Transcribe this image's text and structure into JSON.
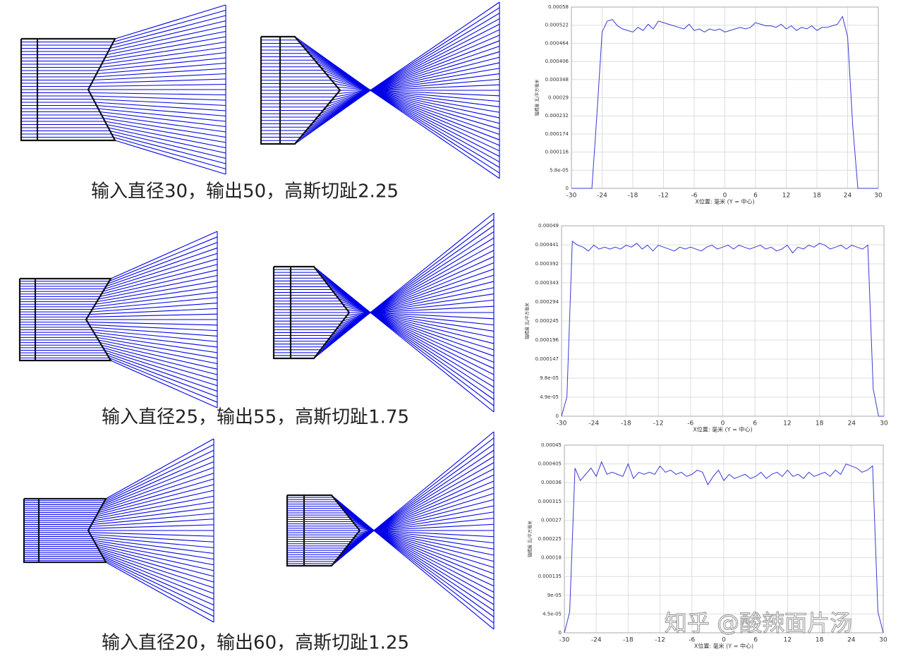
{
  "chart_data": [
    {
      "type": "line",
      "xlabel": "X位置: 毫米 (Y = 中心)",
      "ylabel": "辐照度 瓦/平方毫米",
      "color": "#3a3ad8",
      "grid": true,
      "x": [
        -30,
        -29,
        -28,
        -27,
        -26,
        -25,
        -24,
        -23,
        -22,
        -21,
        -20,
        -19,
        -18,
        -17,
        -16,
        -15,
        -14,
        -13,
        -12,
        -11,
        -10,
        -9,
        -8,
        -7,
        -6,
        -5,
        -4,
        -3,
        -2,
        -1,
        0,
        1,
        2,
        3,
        4,
        5,
        6,
        7,
        8,
        9,
        10,
        11,
        12,
        13,
        14,
        15,
        16,
        17,
        18,
        19,
        20,
        21,
        22,
        23,
        24,
        25,
        26,
        27,
        28,
        29,
        30
      ],
      "values": [
        0,
        0,
        0,
        0,
        0,
        0.00024,
        0.0005,
        0.000535,
        0.00054,
        0.00052,
        0.00051,
        0.000505,
        0.0005,
        0.000515,
        0.000505,
        0.000525,
        0.00051,
        0.000535,
        0.00053,
        0.000525,
        0.00052,
        0.000515,
        0.00051,
        0.000525,
        0.000505,
        0.00051,
        0.0005,
        0.00051,
        0.000505,
        0.00051,
        0.0005,
        0.000505,
        0.00051,
        0.000515,
        0.00051,
        0.000515,
        0.00053,
        0.000525,
        0.00052,
        0.00052,
        0.000515,
        0.000525,
        0.00051,
        0.00052,
        0.000505,
        0.000515,
        0.00051,
        0.00052,
        0.000505,
        0.000515,
        0.000515,
        0.00052,
        0.000525,
        0.00055,
        0.000485,
        0.0002,
        0,
        0,
        0,
        0,
        0
      ],
      "xlim": [
        -30,
        30
      ],
      "xticks": [
        -30,
        -24,
        -18,
        -12,
        -6,
        0,
        6,
        12,
        18,
        24,
        30
      ],
      "ylim": [
        0,
        0.00058
      ],
      "yticks": [
        0,
        {
          "value": 5.8e-05,
          "label": "5.8e-05"
        },
        0.000116,
        0.000174,
        0.000232,
        0.00029,
        0.000348,
        0.000406,
        0.000464,
        0.000522,
        0.00058
      ]
    },
    {
      "type": "line",
      "xlabel": "X位置: 毫米 (Y = 中心)",
      "ylabel": "辐照度 瓦/平方毫米",
      "color": "#3a3ad8",
      "grid": true,
      "x": [
        -30,
        -29,
        -28,
        -27,
        -26,
        -25,
        -24,
        -23,
        -22,
        -21,
        -20,
        -19,
        -18,
        -17,
        -16,
        -15,
        -14,
        -13,
        -12,
        -11,
        -10,
        -9,
        -8,
        -7,
        -6,
        -5,
        -4,
        -3,
        -2,
        -1,
        0,
        1,
        2,
        3,
        4,
        5,
        6,
        7,
        8,
        9,
        10,
        11,
        12,
        13,
        14,
        15,
        16,
        17,
        18,
        19,
        20,
        21,
        22,
        23,
        24,
        25,
        26,
        27,
        28,
        29,
        30
      ],
      "values": [
        0,
        5e-05,
        0.00045,
        0.00044,
        0.000435,
        0.000425,
        0.00044,
        0.00043,
        0.000435,
        0.00043,
        0.000435,
        0.00043,
        0.00044,
        0.000435,
        0.000445,
        0.00043,
        0.00044,
        0.000425,
        0.00044,
        0.000435,
        0.00043,
        0.000425,
        0.000435,
        0.00043,
        0.000435,
        0.00043,
        0.000425,
        0.000435,
        0.00044,
        0.00043,
        0.000435,
        0.00044,
        0.00043,
        0.00044,
        0.000435,
        0.00043,
        0.000435,
        0.00044,
        0.00043,
        0.000435,
        0.000425,
        0.00043,
        0.00044,
        0.00042,
        0.000435,
        0.00043,
        0.00044,
        0.000435,
        0.000445,
        0.00044,
        0.00043,
        0.000435,
        0.00044,
        0.00043,
        0.00044,
        0.000435,
        0.00043,
        0.00044,
        7e-05,
        0,
        0
      ],
      "xlim": [
        -30,
        30
      ],
      "xticks": [
        -30,
        -24,
        -18,
        -12,
        -6,
        0,
        6,
        12,
        18,
        24,
        30
      ],
      "ylim": [
        0,
        0.00049
      ],
      "yticks": [
        0,
        {
          "value": 4.9e-05,
          "label": "4.9e-05"
        },
        {
          "value": 9.8e-05,
          "label": "9.8e-05"
        },
        0.000147,
        0.000196,
        0.000245,
        0.000294,
        0.000343,
        0.000392,
        0.000441,
        0.00049
      ]
    },
    {
      "type": "line",
      "xlabel": "X位置: 毫米 (Y = 中心)",
      "ylabel": "辐照度 瓦/平方毫米",
      "color": "#3a3ad8",
      "grid": true,
      "x": [
        -30,
        -29,
        -28,
        -27,
        -26,
        -25,
        -24,
        -23,
        -22,
        -21,
        -20,
        -19,
        -18,
        -17,
        -16,
        -15,
        -14,
        -13,
        -12,
        -11,
        -10,
        -9,
        -8,
        -7,
        -6,
        -5,
        -4,
        -3,
        -2,
        -1,
        0,
        1,
        2,
        3,
        4,
        5,
        6,
        7,
        8,
        9,
        10,
        11,
        12,
        13,
        14,
        15,
        16,
        17,
        18,
        19,
        20,
        21,
        22,
        23,
        24,
        25,
        26,
        27,
        28,
        29,
        30
      ],
      "values": [
        0,
        5e-05,
        0.000395,
        0.000365,
        0.00038,
        0.000395,
        0.000375,
        0.00041,
        0.00038,
        0.000385,
        0.00038,
        0.000375,
        0.000405,
        0.00037,
        0.000385,
        0.00038,
        0.000385,
        0.00038,
        0.0004,
        0.000385,
        0.00039,
        0.00038,
        0.000385,
        0.000375,
        0.00038,
        0.00039,
        0.000385,
        0.000355,
        0.000375,
        0.00039,
        0.000365,
        0.00038,
        0.00037,
        0.000375,
        0.00038,
        0.00037,
        0.000375,
        0.000385,
        0.00037,
        0.00038,
        0.000385,
        0.000375,
        0.00039,
        0.000375,
        0.00038,
        0.00037,
        0.000385,
        0.000375,
        0.00038,
        0.000385,
        0.000375,
        0.00039,
        0.00038,
        0.000405,
        0.0004,
        0.000395,
        0.000385,
        0.00039,
        0.0004,
        5e-05,
        0
      ],
      "xlim": [
        -30,
        30
      ],
      "xticks": [
        -30,
        -24,
        -18,
        -12,
        -6,
        0,
        6,
        12,
        18,
        24,
        30
      ],
      "ylim": [
        0,
        0.00045
      ],
      "yticks": [
        0,
        {
          "value": 4.5e-05,
          "label": "4.5e-05"
        },
        {
          "value": 9e-05,
          "label": "9e-05"
        },
        0.000135,
        0.00018,
        0.000225,
        0.00027,
        0.000315,
        0.00036,
        0.000405,
        0.00045
      ]
    }
  ],
  "captions": [
    "输入直径30，输出50，高斯切趾2.25",
    "输入直径25，输出55，高斯切趾1.75",
    "输入直径20，输出60，高斯切趾1.25"
  ],
  "watermark": "知乎 @酸辣面片汤"
}
